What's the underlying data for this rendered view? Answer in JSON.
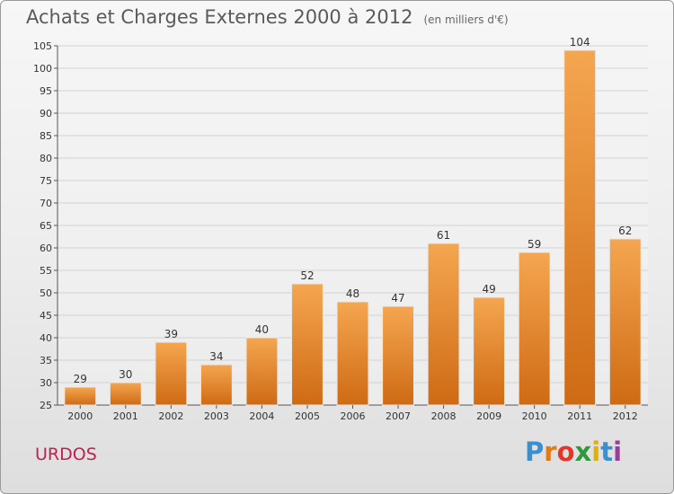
{
  "header": {
    "title": "Achats et Charges Externes 2000 à 2012",
    "subtitle": "(en milliers d'€)"
  },
  "footer": {
    "commune": "URDOS",
    "logo_letters": [
      "P",
      "r",
      "o",
      "x",
      "i",
      "t",
      "i"
    ],
    "logo_colors": [
      "#3a8fd0",
      "#e07a1c",
      "#e5342a",
      "#2e9a3c",
      "#e2b100",
      "#3a8fd0",
      "#9b3c9b"
    ]
  },
  "colors": {
    "bar_top": "#f5a650",
    "bar_bottom": "#cf6a14",
    "grid": "#d2d2d2",
    "axis": "#555555"
  },
  "chart_data": {
    "type": "bar",
    "title": "Achats et Charges Externes 2000 à 2012",
    "subtitle": "(en milliers d'€)",
    "categories": [
      "2000",
      "2001",
      "2002",
      "2003",
      "2004",
      "2005",
      "2006",
      "2007",
      "2008",
      "2009",
      "2010",
      "2011",
      "2012"
    ],
    "values": [
      29,
      30,
      39,
      34,
      40,
      52,
      48,
      47,
      61,
      49,
      59,
      104,
      62
    ],
    "ylim": [
      25,
      105
    ],
    "yticks": [
      25,
      30,
      35,
      40,
      45,
      50,
      55,
      60,
      65,
      70,
      75,
      80,
      85,
      90,
      95,
      100,
      105
    ],
    "grid": true,
    "xlabel": "",
    "ylabel": ""
  }
}
